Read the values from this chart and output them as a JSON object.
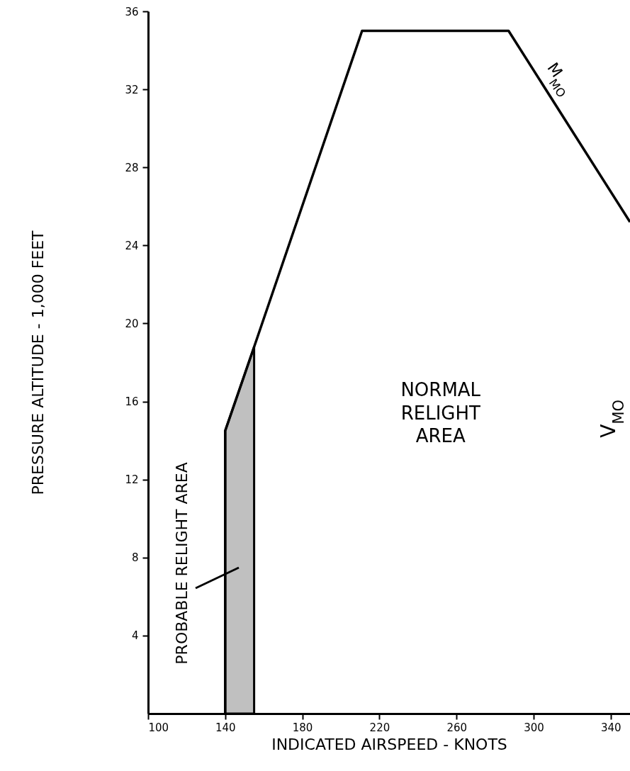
{
  "chart_data": {
    "type": "line",
    "xlabel": "INDICATED AIRSPEED - KNOTS",
    "ylabel": "PRESSURE ALTITUDE  - 1,000 FEET",
    "xlim": [
      100,
      350
    ],
    "ylim": [
      0,
      36
    ],
    "xticks": [
      100,
      140,
      180,
      220,
      260,
      300,
      340
    ],
    "yticks": [
      4,
      8,
      12,
      16,
      20,
      24,
      28,
      32,
      36
    ],
    "series": [
      {
        "type": "area",
        "color": "#c0c0c0",
        "x": [
          140,
          155
        ],
        "values": [
          14.5,
          18.8
        ]
      },
      {
        "color": "#000000",
        "x": [
          140,
          140,
          155,
          211,
          287,
          350
        ],
        "values": [
          0,
          14.5,
          18.8,
          35,
          35,
          25.2
        ]
      }
    ],
    "annotations": [
      "PROBABLE RELIGHT AREA",
      "NORMAL RELIGHT AREA",
      "M$_{MO}$",
      "V$_{MO}$"
    ]
  }
}
